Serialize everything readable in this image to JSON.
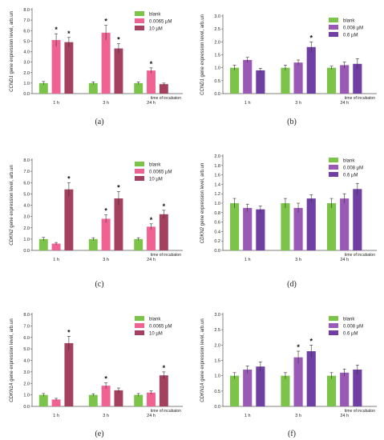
{
  "colors": {
    "blank": "#7cc34a",
    "pink": "#f06292",
    "maroon": "#a3415f",
    "lilac": "#9b59b6",
    "purple": "#6f3fa3",
    "axis": "#555555",
    "text": "#222222"
  },
  "x_note": "time of incubaton",
  "chart_data": [
    {
      "type": "bar",
      "panel": "(a)",
      "ylabel_gene": "CCND1",
      "ylabel_rest": " gene expression level, arb.un",
      "categories": [
        "1 h",
        "3 h",
        "24 h"
      ],
      "yticks": [
        "0.0",
        "1.0",
        "2.0",
        "3.0",
        "4.0",
        "5.0",
        "6.0",
        "7.0",
        "8.0"
      ],
      "ylim": [
        0,
        8
      ],
      "legend_position": "top-right",
      "series": [
        {
          "name": "blank",
          "color": "blank",
          "values": [
            1.0,
            1.0,
            1.0
          ],
          "err": [
            0.15,
            0.12,
            0.12
          ],
          "star": [
            false,
            false,
            false
          ]
        },
        {
          "name": "0.0065 µM",
          "color": "pink",
          "values": [
            5.1,
            5.8,
            2.2
          ],
          "err": [
            0.6,
            0.7,
            0.25
          ],
          "star": [
            true,
            true,
            true
          ]
        },
        {
          "name": "10 µM",
          "color": "maroon",
          "values": [
            4.9,
            4.3,
            0.9
          ],
          "err": [
            0.45,
            0.45,
            0.1
          ],
          "star": [
            true,
            true,
            false
          ]
        }
      ]
    },
    {
      "type": "bar",
      "panel": "(b)",
      "ylabel_gene": "CCND1",
      "ylabel_rest": " gene expression level, arb.un",
      "categories": [
        "1 h",
        "3 h",
        "24 h"
      ],
      "yticks": [
        "0.0",
        "0.5",
        "1.0",
        "1.5",
        "2.0",
        "2.5",
        "3.0"
      ],
      "ylim": [
        0,
        3
      ],
      "legend_position": "top-right",
      "series": [
        {
          "name": "blank",
          "color": "blank",
          "values": [
            1.0,
            1.0,
            1.0
          ],
          "err": [
            0.1,
            0.1,
            0.06
          ],
          "star": [
            false,
            false,
            false
          ]
        },
        {
          "name": "0.008 µM",
          "color": "lilac",
          "values": [
            1.3,
            1.2,
            1.1
          ],
          "err": [
            0.1,
            0.1,
            0.12
          ],
          "star": [
            false,
            false,
            false
          ]
        },
        {
          "name": "0.6 µM",
          "color": "purple",
          "values": [
            0.9,
            1.8,
            1.15
          ],
          "err": [
            0.08,
            0.2,
            0.2
          ],
          "star": [
            false,
            true,
            false
          ]
        }
      ]
    },
    {
      "type": "bar",
      "panel": "(c)",
      "ylabel_gene": "CDKN2",
      "ylabel_rest": " gene expression level, arb.un",
      "categories": [
        "1 h",
        "3 h",
        "24 h"
      ],
      "yticks": [
        "0.0",
        "1.0",
        "2.0",
        "3.0",
        "4.0",
        "5.0",
        "6.0",
        "7.0",
        "8.0"
      ],
      "ylim": [
        0,
        8
      ],
      "legend_position": "top-right",
      "series": [
        {
          "name": "blank",
          "color": "blank",
          "values": [
            1.0,
            1.0,
            1.0
          ],
          "err": [
            0.15,
            0.12,
            0.12
          ],
          "star": [
            false,
            false,
            false
          ]
        },
        {
          "name": "0.0065 µM",
          "color": "pink",
          "values": [
            0.6,
            2.8,
            2.1
          ],
          "err": [
            0.1,
            0.35,
            0.25
          ],
          "star": [
            false,
            true,
            true
          ]
        },
        {
          "name": "10 µM",
          "color": "maroon",
          "values": [
            5.4,
            4.6,
            3.2
          ],
          "err": [
            0.6,
            0.6,
            0.35
          ],
          "star": [
            true,
            true,
            true
          ]
        }
      ]
    },
    {
      "type": "bar",
      "panel": "(d)",
      "ylabel_gene": "CDKN2",
      "ylabel_rest": " gene expression level, arb.un",
      "categories": [
        "1 h",
        "3 h",
        "24 h"
      ],
      "yticks": [
        "0.0",
        "0.2",
        "0.4",
        "0.6",
        "0.8",
        "1.0",
        "1.2",
        "1.4",
        "1.6",
        "1.8",
        "2.0"
      ],
      "ylim": [
        0,
        2
      ],
      "legend_position": "top-right",
      "series": [
        {
          "name": "blank",
          "color": "blank",
          "values": [
            1.0,
            1.0,
            1.0
          ],
          "err": [
            0.1,
            0.1,
            0.1
          ],
          "star": [
            false,
            false,
            false
          ]
        },
        {
          "name": "0.008 µM",
          "color": "lilac",
          "values": [
            0.9,
            0.9,
            1.1
          ],
          "err": [
            0.08,
            0.1,
            0.1
          ],
          "star": [
            false,
            false,
            false
          ]
        },
        {
          "name": "0.6 µM",
          "color": "purple",
          "values": [
            0.87,
            1.1,
            1.3
          ],
          "err": [
            0.07,
            0.08,
            0.12
          ],
          "star": [
            false,
            false,
            false
          ]
        }
      ]
    },
    {
      "type": "bar",
      "panel": "(e)",
      "ylabel_gene": "CDKN1A",
      "ylabel_rest": " gene expression level, arb.un",
      "categories": [
        "1 h",
        "3 h",
        "24 h"
      ],
      "yticks": [
        "0.0",
        "1.0",
        "2.0",
        "3.0",
        "4.0",
        "5.0",
        "6.0",
        "7.0",
        "8.0"
      ],
      "ylim": [
        0,
        8
      ],
      "legend_position": "top-right",
      "series": [
        {
          "name": "blank",
          "color": "blank",
          "values": [
            1.0,
            1.0,
            1.0
          ],
          "err": [
            0.12,
            0.1,
            0.12
          ],
          "star": [
            false,
            false,
            false
          ]
        },
        {
          "name": "0.0065 µM",
          "color": "pink",
          "values": [
            0.6,
            1.8,
            1.2
          ],
          "err": [
            0.1,
            0.25,
            0.15
          ],
          "star": [
            false,
            true,
            false
          ]
        },
        {
          "name": "10 µM",
          "color": "maroon",
          "values": [
            5.5,
            1.4,
            2.7
          ],
          "err": [
            0.6,
            0.2,
            0.3
          ],
          "star": [
            true,
            false,
            true
          ]
        }
      ]
    },
    {
      "type": "bar",
      "panel": "(f)",
      "ylabel_gene": "CDKN1A",
      "ylabel_rest": " gene expression level, arb.un",
      "categories": [
        "1 h",
        "3 h",
        "24 h"
      ],
      "yticks": [
        "0.0",
        "0.5",
        "1.0",
        "1.5",
        "2.0",
        "2.5",
        "3.0"
      ],
      "ylim": [
        0,
        3
      ],
      "legend_position": "top-right",
      "series": [
        {
          "name": "blank",
          "color": "blank",
          "values": [
            1.0,
            1.0,
            1.0
          ],
          "err": [
            0.1,
            0.1,
            0.1
          ],
          "star": [
            false,
            false,
            false
          ]
        },
        {
          "name": "0.008 µM",
          "color": "lilac",
          "values": [
            1.2,
            1.6,
            1.1
          ],
          "err": [
            0.12,
            0.2,
            0.12
          ],
          "star": [
            false,
            true,
            false
          ]
        },
        {
          "name": "0.6 µM",
          "color": "purple",
          "values": [
            1.3,
            1.8,
            1.2
          ],
          "err": [
            0.15,
            0.2,
            0.15
          ],
          "star": [
            false,
            true,
            false
          ]
        }
      ]
    }
  ]
}
